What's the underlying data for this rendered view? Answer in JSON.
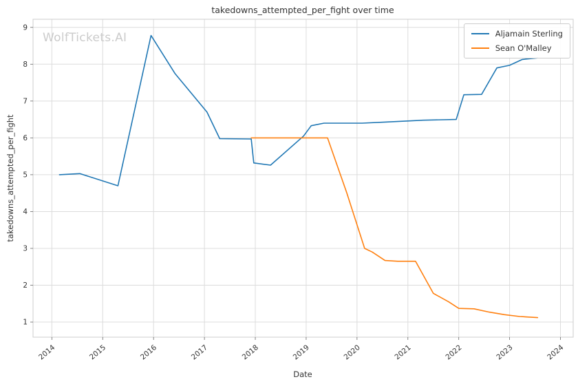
{
  "watermark": "WolfTickets.AI",
  "chart_data": {
    "type": "line",
    "title": "takedowns_attempted_per_fight over time",
    "xlabel": "Date",
    "ylabel": "takedowns_attempted_per_fight",
    "grid": true,
    "legend_position": "upper right",
    "xlim": [
      2013.63,
      2024.25
    ],
    "ylim": [
      0.59,
      9.22
    ],
    "x_ticks": [
      2014,
      2015,
      2016,
      2017,
      2018,
      2019,
      2020,
      2021,
      2022,
      2023,
      2024
    ],
    "y_ticks": [
      1,
      2,
      3,
      4,
      5,
      6,
      7,
      8,
      9
    ],
    "series": [
      {
        "name": "Aljamain Sterling",
        "color": "#1f77b4",
        "points": [
          [
            2014.15,
            5.0
          ],
          [
            2014.55,
            5.03
          ],
          [
            2015.3,
            4.7
          ],
          [
            2015.95,
            8.78
          ],
          [
            2016.42,
            7.75
          ],
          [
            2017.05,
            6.7
          ],
          [
            2017.3,
            5.98
          ],
          [
            2017.92,
            5.97
          ],
          [
            2017.97,
            5.32
          ],
          [
            2018.3,
            5.26
          ],
          [
            2018.95,
            6.05
          ],
          [
            2019.1,
            6.33
          ],
          [
            2019.35,
            6.4
          ],
          [
            2020.1,
            6.4
          ],
          [
            2020.55,
            6.43
          ],
          [
            2021.0,
            6.46
          ],
          [
            2021.3,
            6.48
          ],
          [
            2021.95,
            6.5
          ],
          [
            2022.1,
            7.17
          ],
          [
            2022.45,
            7.18
          ],
          [
            2022.75,
            7.9
          ],
          [
            2023.0,
            7.97
          ],
          [
            2023.25,
            8.13
          ],
          [
            2023.55,
            8.17
          ]
        ]
      },
      {
        "name": "Sean O'Malley",
        "color": "#ff7f0e",
        "points": [
          [
            2017.92,
            6.0
          ],
          [
            2018.3,
            6.0
          ],
          [
            2018.6,
            6.0
          ],
          [
            2019.05,
            6.0
          ],
          [
            2019.42,
            6.0
          ],
          [
            2019.8,
            4.5
          ],
          [
            2020.15,
            3.0
          ],
          [
            2020.3,
            2.9
          ],
          [
            2020.55,
            2.67
          ],
          [
            2020.8,
            2.65
          ],
          [
            2021.15,
            2.65
          ],
          [
            2021.5,
            1.78
          ],
          [
            2021.8,
            1.55
          ],
          [
            2022.0,
            1.37
          ],
          [
            2022.3,
            1.36
          ],
          [
            2022.6,
            1.27
          ],
          [
            2022.9,
            1.2
          ],
          [
            2023.2,
            1.15
          ],
          [
            2023.55,
            1.12
          ]
        ]
      }
    ]
  }
}
